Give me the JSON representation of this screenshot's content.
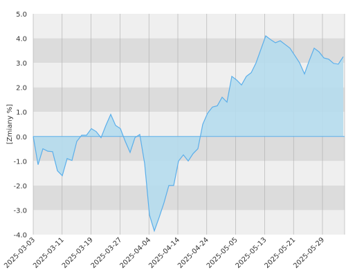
{
  "chart_data": {
    "type": "area",
    "ylabel": "[Zmiany %]",
    "ylim": [
      -4.0,
      5.0
    ],
    "y_ticks": [
      "5.0",
      "4.0",
      "3.0",
      "2.0",
      "1.0",
      "0.0",
      "-1.0",
      "-2.0",
      "-3.0",
      "-4.0"
    ],
    "x_ticks": [
      "2025-03-03",
      "2025-03-11",
      "2025-03-19",
      "2025-03-27",
      "2025-04-04",
      "2025-04-14",
      "2025-04-24",
      "2025-05-05",
      "2025-05-13",
      "2025-05-21",
      "2025-05-29"
    ],
    "grid": true,
    "series": [
      {
        "values": [
          0.0,
          -1.15,
          -0.5,
          -0.6,
          -0.62,
          -1.4,
          -1.6,
          -0.9,
          -0.98,
          -0.2,
          0.05,
          0.05,
          0.32,
          0.2,
          -0.05,
          0.45,
          0.9,
          0.45,
          0.32,
          -0.2,
          -0.65,
          -0.05,
          0.08,
          -1.1,
          -3.2,
          -3.85,
          -3.3,
          -2.7,
          -2.0,
          -2.0,
          -1.0,
          -0.75,
          -1.0,
          -0.7,
          -0.5,
          0.5,
          0.95,
          1.2,
          1.25,
          1.6,
          1.4,
          2.45,
          2.3,
          2.1,
          2.45,
          2.6,
          3.0,
          3.55,
          4.1,
          3.95,
          3.82,
          3.9,
          3.75,
          3.6,
          3.3,
          3.0,
          2.55,
          3.1,
          3.6,
          3.45,
          3.2,
          3.15,
          2.98,
          2.95,
          3.25
        ]
      }
    ],
    "colors": {
      "line": "#5aaeea",
      "fill": "#b5dced",
      "band_light": "#efefef",
      "band_dark": "#dcdcdc",
      "grid": "#aaaaaa",
      "text": "#333333"
    }
  }
}
